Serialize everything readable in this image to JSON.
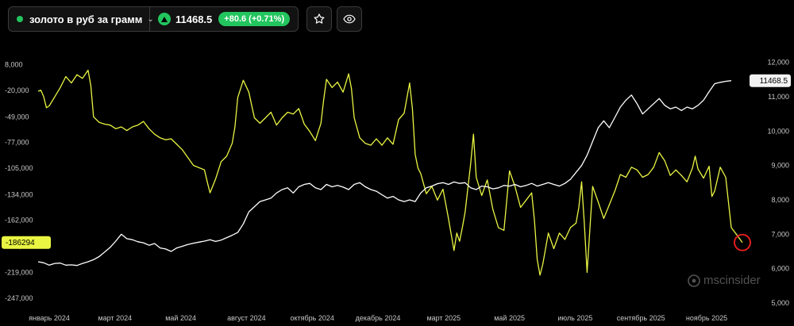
{
  "symbol": {
    "name": "золото в руб за грамм",
    "price": "11468.5",
    "change": "+80.6 (+0.71%)"
  },
  "icons": [
    "star-icon",
    "eye-icon",
    "chevron-down-icon",
    "arrow-up-icon"
  ],
  "colors": {
    "background": "#000000",
    "positive": "#22c55e",
    "yellow_series": "#e9f542",
    "white_series": "#ffffff",
    "marker": "#e11d1d"
  },
  "watermark": "mscinsider",
  "chart_data": {
    "type": "line",
    "x_tick_labels": [
      "январь 2024",
      "март 2024",
      "май 2024",
      "август 2024",
      "октябрь 2024",
      "декабрь 2024",
      "март 2025",
      "май 2025",
      "июль 2025",
      "сентябрь 2025",
      "ноябрь 2025"
    ],
    "left_axis": {
      "tick_labels": [
        "8,000",
        "-20,000",
        "-49,000",
        "-77,000",
        "-105,000",
        "-134,000",
        "-162,000",
        "-190,000",
        "-219,000",
        "-247,000"
      ],
      "range": [
        -255000,
        18000
      ],
      "current_label": "-186294"
    },
    "right_axis": {
      "tick_labels": [
        "12,000",
        "11,000",
        "10,000",
        "9,000",
        "8,000",
        "7,000",
        "6,000",
        "5,000"
      ],
      "range": [
        4930,
        12200
      ],
      "current_label": "11468.5"
    },
    "grid": false,
    "series": [
      {
        "axis": "left",
        "color": "#e9f542",
        "points": [
          [
            0.0,
            -21000
          ],
          [
            0.05,
            -20000
          ],
          [
            0.1,
            -27000
          ],
          [
            0.15,
            -39000
          ],
          [
            0.2,
            -37000
          ],
          [
            0.3,
            -27000
          ],
          [
            0.4,
            -17000
          ],
          [
            0.5,
            -5000
          ],
          [
            0.6,
            -12000
          ],
          [
            0.7,
            -3000
          ],
          [
            0.8,
            -7000
          ],
          [
            0.9,
            2000
          ],
          [
            0.95,
            -15000
          ],
          [
            1.0,
            -49000
          ],
          [
            1.1,
            -55000
          ],
          [
            1.2,
            -57000
          ],
          [
            1.3,
            -58000
          ],
          [
            1.4,
            -62000
          ],
          [
            1.5,
            -60000
          ],
          [
            1.6,
            -64000
          ],
          [
            1.7,
            -60000
          ],
          [
            1.8,
            -58000
          ],
          [
            1.9,
            -54000
          ],
          [
            2.0,
            -62000
          ],
          [
            2.1,
            -68000
          ],
          [
            2.2,
            -72000
          ],
          [
            2.3,
            -74000
          ],
          [
            2.4,
            -73000
          ],
          [
            2.5,
            -79000
          ],
          [
            2.6,
            -85000
          ],
          [
            2.8,
            -102000
          ],
          [
            3.0,
            -107000
          ],
          [
            3.05,
            -120000
          ],
          [
            3.1,
            -132000
          ],
          [
            3.2,
            -117000
          ],
          [
            3.3,
            -98000
          ],
          [
            3.4,
            -92000
          ],
          [
            3.5,
            -78000
          ],
          [
            3.55,
            -60000
          ],
          [
            3.6,
            -28000
          ],
          [
            3.7,
            -9000
          ],
          [
            3.8,
            -22000
          ],
          [
            3.9,
            -50000
          ],
          [
            4.0,
            -56000
          ],
          [
            4.1,
            -50000
          ],
          [
            4.2,
            -44000
          ],
          [
            4.3,
            -58000
          ],
          [
            4.4,
            -50000
          ],
          [
            4.5,
            -44000
          ],
          [
            4.6,
            -46000
          ],
          [
            4.7,
            -40000
          ],
          [
            4.8,
            -57000
          ],
          [
            4.9,
            -65000
          ],
          [
            5.0,
            -75000
          ],
          [
            5.1,
            -56000
          ],
          [
            5.15,
            -30000
          ],
          [
            5.2,
            -8000
          ],
          [
            5.3,
            -17000
          ],
          [
            5.4,
            -11000
          ],
          [
            5.5,
            -22000
          ],
          [
            5.6,
            -2000
          ],
          [
            5.65,
            -18000
          ],
          [
            5.7,
            -50000
          ],
          [
            5.8,
            -72000
          ],
          [
            5.9,
            -78000
          ],
          [
            6.0,
            -80000
          ],
          [
            6.1,
            -73000
          ],
          [
            6.2,
            -80000
          ],
          [
            6.3,
            -72000
          ],
          [
            6.4,
            -79000
          ],
          [
            6.5,
            -52000
          ],
          [
            6.6,
            -45000
          ],
          [
            6.7,
            -12000
          ],
          [
            6.75,
            -40000
          ],
          [
            6.8,
            -90000
          ],
          [
            6.85,
            -105000
          ],
          [
            6.9,
            -111000
          ],
          [
            7.0,
            -133000
          ],
          [
            7.1,
            -125000
          ],
          [
            7.2,
            -140000
          ],
          [
            7.3,
            -128000
          ],
          [
            7.4,
            -160000
          ],
          [
            7.5,
            -195000
          ],
          [
            7.55,
            -176000
          ],
          [
            7.6,
            -185000
          ],
          [
            7.65,
            -170000
          ],
          [
            7.7,
            -153000
          ],
          [
            7.8,
            -100000
          ],
          [
            7.85,
            -68000
          ],
          [
            7.9,
            -115000
          ],
          [
            8.0,
            -135000
          ],
          [
            8.1,
            -118000
          ],
          [
            8.2,
            -150000
          ],
          [
            8.3,
            -170000
          ],
          [
            8.4,
            -173000
          ],
          [
            8.5,
            -108000
          ],
          [
            8.6,
            -125000
          ],
          [
            8.7,
            -148000
          ],
          [
            8.8,
            -140000
          ],
          [
            8.9,
            -132000
          ],
          [
            8.95,
            -162000
          ],
          [
            9.0,
            -205000
          ],
          [
            9.05,
            -222000
          ],
          [
            9.1,
            -210000
          ],
          [
            9.2,
            -176000
          ],
          [
            9.3,
            -193000
          ],
          [
            9.4,
            -176000
          ],
          [
            9.5,
            -183000
          ],
          [
            9.6,
            -170000
          ],
          [
            9.7,
            -165000
          ],
          [
            9.75,
            -148000
          ],
          [
            9.8,
            -120000
          ],
          [
            9.85,
            -165000
          ],
          [
            9.9,
            -219000
          ],
          [
            10.0,
            -125000
          ],
          [
            10.1,
            -142000
          ],
          [
            10.2,
            -160000
          ],
          [
            10.3,
            -145000
          ],
          [
            10.4,
            -130000
          ],
          [
            10.5,
            -112000
          ],
          [
            10.6,
            -115000
          ],
          [
            10.7,
            -104000
          ],
          [
            10.8,
            -107000
          ],
          [
            10.9,
            -115000
          ],
          [
            11.0,
            -112000
          ],
          [
            11.1,
            -104000
          ],
          [
            11.2,
            -88000
          ],
          [
            11.3,
            -97000
          ],
          [
            11.4,
            -113000
          ],
          [
            11.5,
            -107000
          ],
          [
            11.6,
            -113000
          ],
          [
            11.7,
            -120000
          ],
          [
            11.8,
            -105000
          ],
          [
            11.85,
            -92000
          ],
          [
            11.9,
            -106000
          ],
          [
            12.0,
            -116000
          ],
          [
            12.1,
            -103000
          ],
          [
            12.15,
            -136000
          ],
          [
            12.2,
            -130000
          ],
          [
            12.3,
            -104000
          ],
          [
            12.4,
            -115000
          ],
          [
            12.5,
            -170000
          ],
          [
            12.6,
            -178000
          ],
          [
            12.7,
            -186294
          ]
        ]
      },
      {
        "axis": "right",
        "color": "#ffffff",
        "points": [
          [
            0.0,
            6200
          ],
          [
            0.1,
            6170
          ],
          [
            0.2,
            6100
          ],
          [
            0.3,
            6150
          ],
          [
            0.4,
            6160
          ],
          [
            0.5,
            6100
          ],
          [
            0.6,
            6110
          ],
          [
            0.7,
            6090
          ],
          [
            0.8,
            6150
          ],
          [
            0.9,
            6200
          ],
          [
            1.0,
            6260
          ],
          [
            1.1,
            6350
          ],
          [
            1.2,
            6480
          ],
          [
            1.3,
            6620
          ],
          [
            1.4,
            6800
          ],
          [
            1.5,
            7000
          ],
          [
            1.6,
            6870
          ],
          [
            1.7,
            6840
          ],
          [
            1.8,
            6780
          ],
          [
            1.9,
            6750
          ],
          [
            2.0,
            6680
          ],
          [
            2.1,
            6730
          ],
          [
            2.2,
            6600
          ],
          [
            2.3,
            6570
          ],
          [
            2.4,
            6500
          ],
          [
            2.5,
            6600
          ],
          [
            2.6,
            6650
          ],
          [
            2.7,
            6700
          ],
          [
            2.8,
            6740
          ],
          [
            2.9,
            6770
          ],
          [
            3.0,
            6800
          ],
          [
            3.1,
            6840
          ],
          [
            3.2,
            6790
          ],
          [
            3.3,
            6830
          ],
          [
            3.4,
            6900
          ],
          [
            3.5,
            6970
          ],
          [
            3.6,
            7050
          ],
          [
            3.7,
            7300
          ],
          [
            3.8,
            7650
          ],
          [
            3.9,
            7800
          ],
          [
            4.0,
            7950
          ],
          [
            4.1,
            8000
          ],
          [
            4.2,
            8050
          ],
          [
            4.3,
            8200
          ],
          [
            4.4,
            8300
          ],
          [
            4.5,
            8350
          ],
          [
            4.6,
            8200
          ],
          [
            4.7,
            8380
          ],
          [
            4.8,
            8450
          ],
          [
            4.9,
            8480
          ],
          [
            5.0,
            8350
          ],
          [
            5.1,
            8300
          ],
          [
            5.2,
            8450
          ],
          [
            5.3,
            8380
          ],
          [
            5.4,
            8420
          ],
          [
            5.5,
            8370
          ],
          [
            5.6,
            8300
          ],
          [
            5.7,
            8450
          ],
          [
            5.8,
            8500
          ],
          [
            5.9,
            8380
          ],
          [
            6.0,
            8300
          ],
          [
            6.1,
            8250
          ],
          [
            6.2,
            8150
          ],
          [
            6.3,
            8050
          ],
          [
            6.4,
            8100
          ],
          [
            6.5,
            8000
          ],
          [
            6.6,
            7950
          ],
          [
            6.7,
            8000
          ],
          [
            6.8,
            7950
          ],
          [
            6.9,
            8200
          ],
          [
            7.0,
            8350
          ],
          [
            7.1,
            8400
          ],
          [
            7.2,
            8470
          ],
          [
            7.3,
            8500
          ],
          [
            7.4,
            8450
          ],
          [
            7.5,
            8520
          ],
          [
            7.6,
            8480
          ],
          [
            7.7,
            8500
          ],
          [
            7.8,
            8350
          ],
          [
            7.9,
            8300
          ],
          [
            8.0,
            8400
          ],
          [
            8.1,
            8380
          ],
          [
            8.2,
            8320
          ],
          [
            8.3,
            8350
          ],
          [
            8.4,
            8420
          ],
          [
            8.5,
            8400
          ],
          [
            8.6,
            8450
          ],
          [
            8.7,
            8380
          ],
          [
            8.8,
            8420
          ],
          [
            8.9,
            8480
          ],
          [
            9.0,
            8400
          ],
          [
            9.1,
            8450
          ],
          [
            9.2,
            8500
          ],
          [
            9.3,
            8450
          ],
          [
            9.4,
            8400
          ],
          [
            9.5,
            8480
          ],
          [
            9.6,
            8600
          ],
          [
            9.7,
            8800
          ],
          [
            9.8,
            9000
          ],
          [
            9.9,
            9300
          ],
          [
            10.0,
            9700
          ],
          [
            10.1,
            10100
          ],
          [
            10.2,
            10300
          ],
          [
            10.3,
            10100
          ],
          [
            10.4,
            10400
          ],
          [
            10.5,
            10700
          ],
          [
            10.6,
            10900
          ],
          [
            10.7,
            11050
          ],
          [
            10.8,
            10800
          ],
          [
            10.9,
            10500
          ],
          [
            11.0,
            10650
          ],
          [
            11.1,
            10800
          ],
          [
            11.2,
            10950
          ],
          [
            11.3,
            10750
          ],
          [
            11.4,
            10650
          ],
          [
            11.5,
            10700
          ],
          [
            11.6,
            10600
          ],
          [
            11.7,
            10700
          ],
          [
            11.8,
            10650
          ],
          [
            11.9,
            10750
          ],
          [
            12.0,
            10900
          ],
          [
            12.1,
            11150
          ],
          [
            12.2,
            11380
          ],
          [
            12.3,
            11420
          ],
          [
            12.4,
            11450
          ],
          [
            12.5,
            11468.5
          ]
        ]
      }
    ],
    "x_range": [
      0,
      12.7
    ],
    "marker": {
      "series": 0,
      "at": "last",
      "color": "#e11d1d"
    }
  }
}
